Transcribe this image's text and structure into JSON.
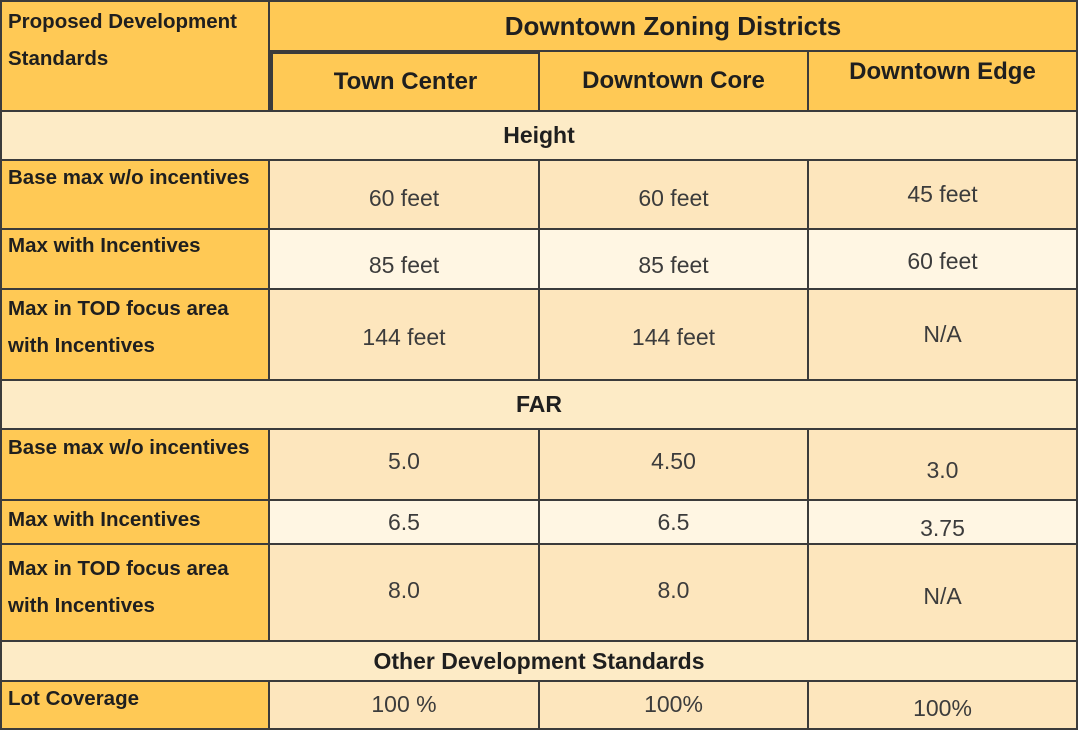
{
  "corner_label": "Proposed Development Standards",
  "districts_header": "Downtown Zoning Districts",
  "columns": [
    "Town Center",
    "Downtown Core",
    "Downtown Edge"
  ],
  "sections": [
    {
      "title": "Height",
      "rows": [
        {
          "label": "Base max w/o incentives",
          "values": [
            "60 feet",
            "60 feet",
            "45 feet"
          ]
        },
        {
          "label": "Max with Incentives",
          "values": [
            "85 feet",
            "85 feet",
            "60 feet"
          ]
        },
        {
          "label": "Max in TOD focus area with Incentives",
          "values": [
            "144 feet",
            "144 feet",
            "N/A"
          ]
        }
      ]
    },
    {
      "title": "FAR",
      "rows": [
        {
          "label": "Base max w/o incentives",
          "values": [
            "5.0",
            "4.50",
            "3.0"
          ]
        },
        {
          "label": "Max with Incentives",
          "values": [
            "6.5",
            "6.5",
            "3.75"
          ]
        },
        {
          "label": "Max in TOD focus area with Incentives",
          "values": [
            "8.0",
            "8.0",
            "N/A"
          ]
        }
      ]
    },
    {
      "title": "Other Development Standards",
      "rows": [
        {
          "label": "Lot Coverage",
          "values": [
            "100 %",
            "100%",
            "100%"
          ]
        }
      ]
    }
  ]
}
